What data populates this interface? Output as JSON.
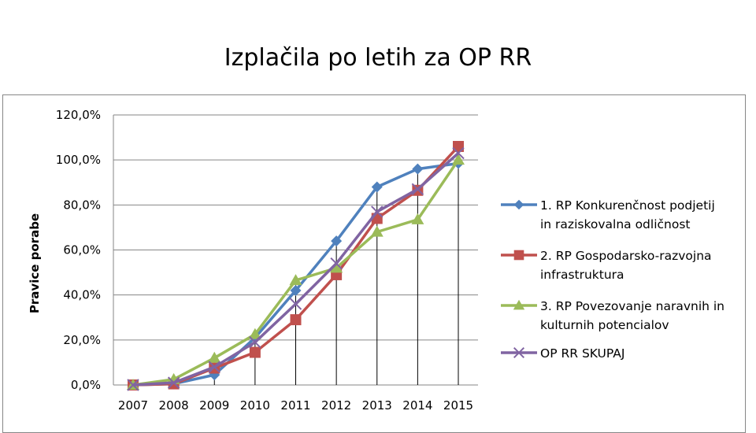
{
  "slide": {
    "title": "Izplačila po letih za OP RR"
  },
  "chart_data": {
    "type": "line",
    "title": "Izplačila po letih za OP RR",
    "xlabel": "",
    "ylabel": "Pravice porabe",
    "categories": [
      "2007",
      "2008",
      "2009",
      "2010",
      "2011",
      "2012",
      "2013",
      "2014",
      "2015"
    ],
    "ylim": [
      0,
      120
    ],
    "yticks": [
      0,
      20,
      40,
      60,
      80,
      100,
      120
    ],
    "ytick_labels": [
      "0,0%",
      "20,0%",
      "40,0%",
      "60,0%",
      "80,0%",
      "100,0%",
      "120,0%"
    ],
    "grid": true,
    "legend_position": "right",
    "series": [
      {
        "name": "1. RP Konkurenčnost podjetij in raziskovalna odličnost",
        "legend_lines": [
          "1. RP Konkurenčnost podjetij",
          "in raziskovalna odličnost"
        ],
        "color": "#4F81BD",
        "marker": "diamond",
        "values": [
          0,
          0.5,
          4.5,
          21,
          42,
          64,
          88,
          96,
          98.5
        ]
      },
      {
        "name": "2. RP Gospodarsko-razvojna infrastruktura",
        "legend_lines": [
          "2. RP Gospodarsko-razvojna",
          "infrastruktura"
        ],
        "color": "#C0504D",
        "marker": "square",
        "values": [
          0,
          0.5,
          7.5,
          14.5,
          29,
          49,
          74,
          86.5,
          106
        ]
      },
      {
        "name": "3. RP Povezovanje naravnih in kulturnih potencialov",
        "legend_lines": [
          "3. RP Povezovanje naravnih in",
          "kulturnih potencialov"
        ],
        "color": "#9BBB59",
        "marker": "triangle",
        "values": [
          0,
          2.5,
          12,
          22.5,
          46.5,
          52,
          68,
          73.5,
          100
        ]
      },
      {
        "name": "OP RR SKUPAJ",
        "legend_lines": [
          "OP RR SKUPAJ"
        ],
        "color": "#8064A2",
        "marker": "x",
        "values": [
          0,
          1,
          8,
          19,
          36,
          54,
          77,
          87,
          103
        ]
      }
    ]
  }
}
